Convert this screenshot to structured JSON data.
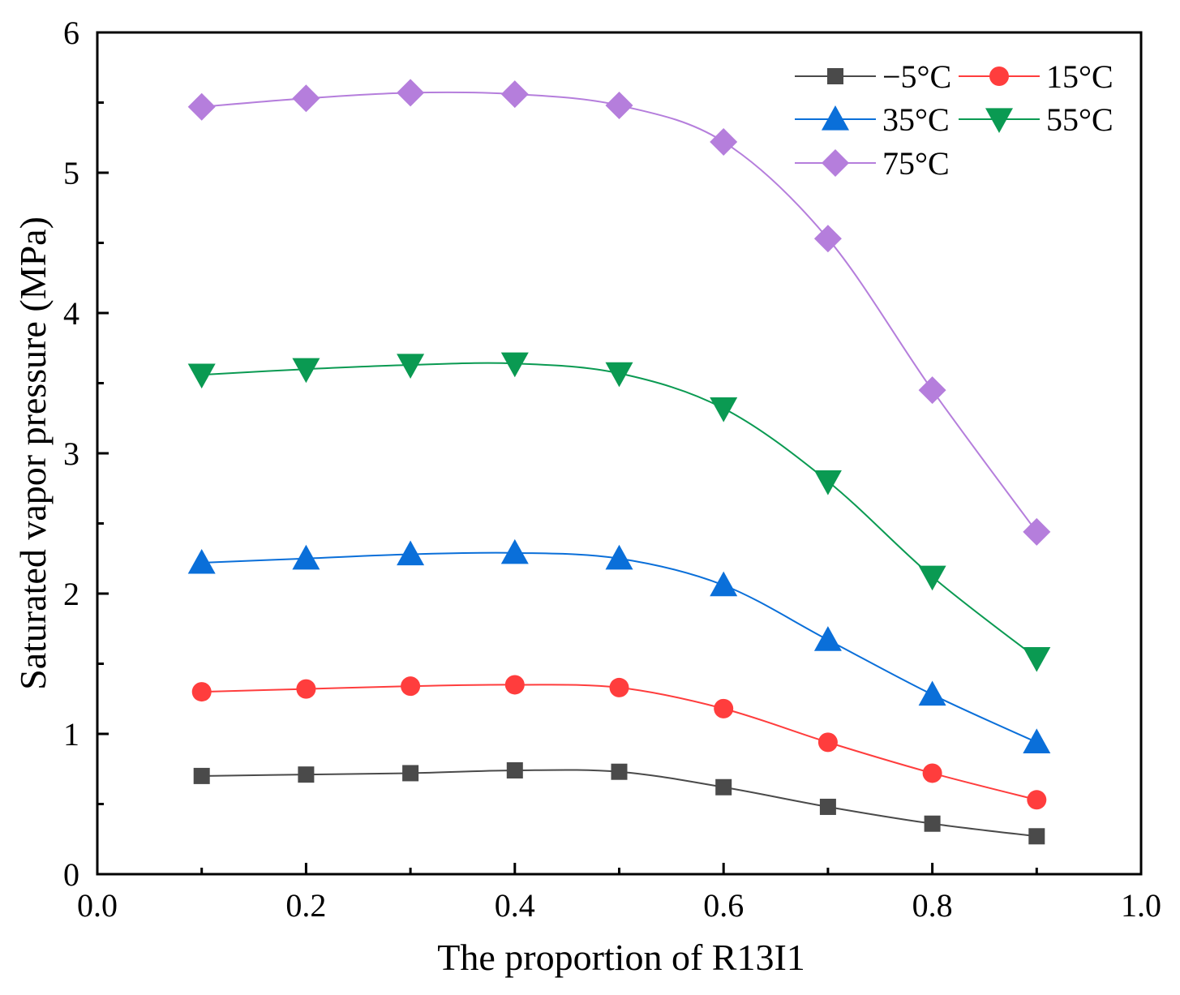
{
  "chart_data": {
    "type": "line",
    "title": "",
    "xlabel": "The proportion of R13I1",
    "ylabel": "Saturated vapor pressure (MPa)",
    "xlim": [
      0.0,
      1.0
    ],
    "ylim": [
      0,
      6
    ],
    "xticks": [
      "0.0",
      "0.2",
      "0.4",
      "0.6",
      "0.8",
      "1.0"
    ],
    "yticks": [
      "0",
      "1",
      "2",
      "3",
      "4",
      "5",
      "6"
    ],
    "grid": false,
    "legend_position": "top-right",
    "x": [
      0.1,
      0.2,
      0.3,
      0.4,
      0.5,
      0.6,
      0.7,
      0.8,
      0.9
    ],
    "series": [
      {
        "name": "−5°C",
        "color": "#4a4a4a",
        "marker": "square",
        "values": [
          0.7,
          0.71,
          0.72,
          0.74,
          0.73,
          0.62,
          0.48,
          0.36,
          0.27
        ]
      },
      {
        "name": "15°C",
        "color": "#ff3d3d",
        "marker": "circle",
        "values": [
          1.3,
          1.32,
          1.34,
          1.35,
          1.33,
          1.18,
          0.94,
          0.72,
          0.53
        ]
      },
      {
        "name": "35°C",
        "color": "#0a6fd9",
        "marker": "triangle-up",
        "values": [
          2.22,
          2.25,
          2.28,
          2.29,
          2.25,
          2.06,
          1.67,
          1.28,
          0.94
        ]
      },
      {
        "name": "55°C",
        "color": "#0a9a52",
        "marker": "triangle-down",
        "values": [
          3.56,
          3.6,
          3.63,
          3.64,
          3.57,
          3.32,
          2.8,
          2.12,
          1.54
        ]
      },
      {
        "name": "75°C",
        "color": "#b57edc",
        "marker": "diamond",
        "values": [
          5.47,
          5.53,
          5.57,
          5.56,
          5.48,
          5.22,
          4.53,
          3.45,
          2.44
        ]
      }
    ]
  }
}
